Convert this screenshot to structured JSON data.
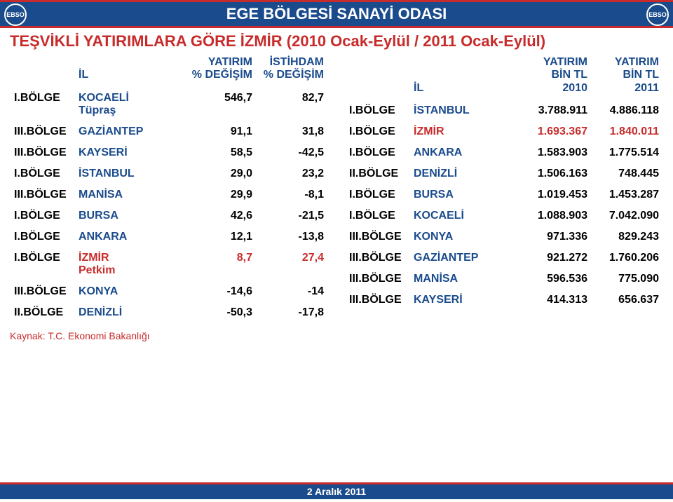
{
  "header": {
    "org": "EGE BÖLGESİ SANAYİ ODASI",
    "logo_text": "EBSO"
  },
  "title": "TEŞVİKLİ YATIRIMLARA GÖRE İZMİR (2010 Ocak-Eylül / 2011 Ocak-Eylül)",
  "left_table": {
    "headers": {
      "region": "",
      "il": "İL",
      "c1": "YATIRIM\n% DEĞİŞİM",
      "c2": "İSTİHDAM\n% DEĞİŞİM"
    },
    "rows": [
      {
        "region": "I.BÖLGE",
        "il": "KOCAELİ\nTüpraş",
        "v1": "546,7",
        "v2": "82,7",
        "hi": false
      },
      {
        "region": "III.BÖLGE",
        "il": "GAZİANTEP",
        "v1": "91,1",
        "v2": "31,8",
        "hi": false
      },
      {
        "region": "III.BÖLGE",
        "il": "KAYSERİ",
        "v1": "58,5",
        "v2": "-42,5",
        "hi": false
      },
      {
        "region": "I.BÖLGE",
        "il": "İSTANBUL",
        "v1": "29,0",
        "v2": "23,2",
        "hi": false
      },
      {
        "region": "III.BÖLGE",
        "il": "MANİSA",
        "v1": "29,9",
        "v2": "-8,1",
        "hi": false
      },
      {
        "region": "I.BÖLGE",
        "il": "BURSA",
        "v1": "42,6",
        "v2": "-21,5",
        "hi": false
      },
      {
        "region": "I.BÖLGE",
        "il": "ANKARA",
        "v1": "12,1",
        "v2": "-13,8",
        "hi": false
      },
      {
        "region": "I.BÖLGE",
        "il": "İZMİR\nPetkim",
        "v1": "8,7",
        "v2": "27,4",
        "hi": true
      },
      {
        "region": "III.BÖLGE",
        "il": "KONYA",
        "v1": "-14,6",
        "v2": "-14",
        "hi": false
      },
      {
        "region": "II.BÖLGE",
        "il": "DENİZLİ",
        "v1": "-50,3",
        "v2": "-17,8",
        "hi": false
      }
    ]
  },
  "right_table": {
    "headers": {
      "region": "",
      "il": "İL",
      "c1": "YATIRIM\nBİN TL\n2010",
      "c2": "YATIRIM\nBİN TL\n2011"
    },
    "rows": [
      {
        "region": "I.BÖLGE",
        "il": "İSTANBUL",
        "v1": "3.788.911",
        "v2": "4.886.118",
        "hi": false
      },
      {
        "region": "I.BÖLGE",
        "il": "İZMİR",
        "v1": "1.693.367",
        "v2": "1.840.011",
        "hi": true
      },
      {
        "region": "I.BÖLGE",
        "il": "ANKARA",
        "v1": "1.583.903",
        "v2": "1.775.514",
        "hi": false
      },
      {
        "region": "II.BÖLGE",
        "il": "DENİZLİ",
        "v1": "1.506.163",
        "v2": "748.445",
        "hi": false
      },
      {
        "region": "I.BÖLGE",
        "il": "BURSA",
        "v1": "1.019.453",
        "v2": "1.453.287",
        "hi": false
      },
      {
        "region": "I.BÖLGE",
        "il": "KOCAELİ",
        "v1": "1.088.903",
        "v2": "7.042.090",
        "hi": false
      },
      {
        "region": "III.BÖLGE",
        "il": "KONYA",
        "v1": "971.336",
        "v2": "829.243",
        "hi": false
      },
      {
        "region": "III.BÖLGE",
        "il": "GAZİANTEP",
        "v1": "921.272",
        "v2": "1.760.206",
        "hi": false
      },
      {
        "region": "III.BÖLGE",
        "il": "MANİSA",
        "v1": "596.536",
        "v2": "775.090",
        "hi": false
      },
      {
        "region": "III.BÖLGE",
        "il": "KAYSERİ",
        "v1": "414.313",
        "v2": "656.637",
        "hi": false
      }
    ]
  },
  "source": "Kaynak: T.C. Ekonomi Bakanlığı",
  "footer_date": "2 Aralık 2011",
  "colors": {
    "header_blue": "#1a4b8c",
    "accent_red": "#c82b2b",
    "text_black": "#000000",
    "bg": "#ffffff"
  }
}
